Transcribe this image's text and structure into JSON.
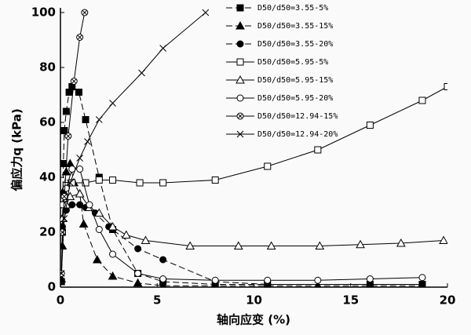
{
  "chart_data": {
    "type": "line",
    "x_label": "轴向应变 (%)",
    "y_label": "偏应力q (kPa)",
    "xlim": [
      0,
      20
    ],
    "xticks": [
      0,
      5,
      10,
      15,
      20
    ],
    "ylim": [
      0,
      100
    ],
    "yticks": [
      0,
      20,
      40,
      60,
      80,
      100
    ],
    "legend": "top-right",
    "series": [
      {
        "name": "D50/d50=3.55-5%",
        "color": "#000000",
        "marker": "filled-square",
        "line_style": "dashed",
        "x": [
          0.05,
          0.1,
          0.15,
          0.2,
          0.3,
          0.45,
          0.6,
          0.95,
          1.3,
          2.0,
          2.7,
          4.0,
          5.3,
          8.0,
          10.7,
          16.0,
          18.7
        ],
        "values": [
          2,
          20,
          45,
          57,
          64,
          71,
          73,
          71,
          61,
          40,
          21,
          5,
          2,
          1,
          1,
          1,
          1
        ]
      },
      {
        "name": "D50/d50=3.55-15%",
        "color": "#000000",
        "marker": "filled-triangle",
        "line_style": "dashed",
        "x": [
          0.05,
          0.1,
          0.15,
          0.3,
          0.5,
          0.7,
          1.0,
          1.2,
          1.9,
          2.7,
          4.0,
          5.3,
          8.0,
          13.3,
          18.7
        ],
        "values": [
          3,
          15,
          35,
          42,
          45,
          38,
          34,
          23,
          10,
          4,
          1.5,
          0.5,
          0.5,
          0.5,
          0.5
        ]
      },
      {
        "name": "D50/d50=3.55-20%",
        "color": "#000000",
        "marker": "filled-circle",
        "line_style": "dashed",
        "x": [
          0.1,
          0.3,
          0.6,
          1.0,
          1.3,
          1.8,
          2.5,
          4.0,
          5.3,
          8.0,
          10.7,
          16.0,
          18.7
        ],
        "values": [
          22,
          28,
          30,
          30,
          29,
          27,
          22,
          14,
          10,
          2,
          1,
          1,
          1
        ]
      },
      {
        "name": "D50/d50=5.95-5%",
        "color": "#000000",
        "marker": "square",
        "line_style": "solid",
        "x": [
          0.1,
          0.3,
          0.6,
          1.3,
          2.0,
          2.7,
          4.1,
          5.3,
          8.0,
          10.7,
          13.3,
          16.0,
          18.7,
          20.0
        ],
        "values": [
          30,
          37,
          38,
          38,
          39,
          39,
          38,
          38,
          39,
          44,
          50,
          59,
          68,
          73
        ]
      },
      {
        "name": "D50/d50=5.95-15%",
        "color": "#000000",
        "marker": "triangle",
        "line_style": "solid",
        "x": [
          0.1,
          0.3,
          0.5,
          1.0,
          1.5,
          2.0,
          2.7,
          3.4,
          4.4,
          6.7,
          9.2,
          10.9,
          13.4,
          15.5,
          17.6,
          19.8
        ],
        "values": [
          25,
          30,
          33,
          34,
          29,
          27,
          22,
          19,
          17,
          15,
          15,
          15,
          15,
          15.5,
          16,
          17
        ]
      },
      {
        "name": "D50/d50=5.95-20%",
        "color": "#000000",
        "marker": "circle",
        "line_style": "solid",
        "x": [
          0.1,
          0.3,
          0.6,
          1.0,
          1.5,
          2.0,
          2.7,
          4.0,
          5.3,
          8.0,
          10.7,
          13.3,
          16.0,
          18.7
        ],
        "values": [
          30,
          36,
          43,
          43,
          30,
          21,
          12,
          5,
          3,
          2.5,
          2.5,
          2.5,
          3,
          3.5
        ]
      },
      {
        "name": "D50/d50=12.94-15%",
        "color": "#000000",
        "marker": "circle-x",
        "line_style": "solid",
        "x": [
          0.05,
          0.1,
          0.2,
          0.4,
          0.7,
          1.0,
          1.25
        ],
        "values": [
          5,
          20,
          33,
          55,
          75,
          91,
          100
        ]
      },
      {
        "name": "D50/d50=12.94-20%",
        "color": "#000000",
        "marker": "x",
        "line_style": "solid",
        "x": [
          0.05,
          0.2,
          0.5,
          1.0,
          1.4,
          2.0,
          2.7,
          4.2,
          5.3,
          7.5
        ],
        "values": [
          5,
          25,
          38,
          47,
          53,
          61,
          67,
          78,
          87,
          100
        ]
      }
    ]
  }
}
